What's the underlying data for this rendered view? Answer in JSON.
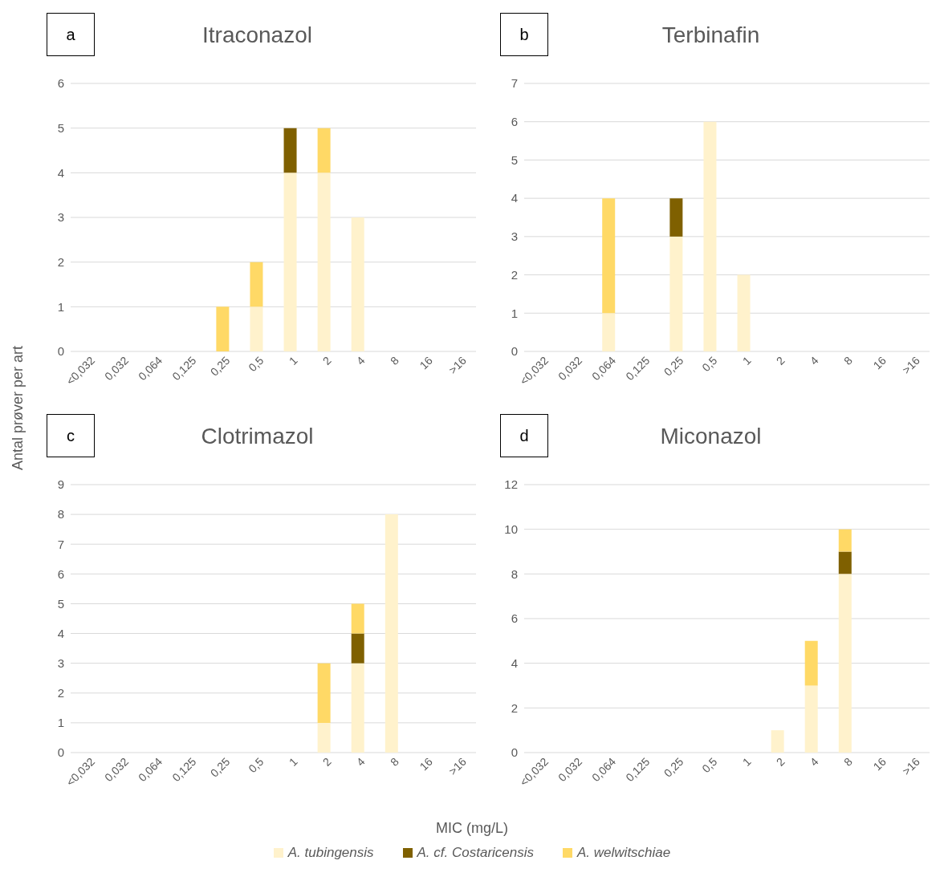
{
  "chart_data": [
    {
      "type": "bar",
      "title": "Itraconazol",
      "annotations": [
        "a"
      ],
      "ylabel": "Antal prøver per art",
      "xlabel": "MIC (mg/L)",
      "legend": "bottom",
      "stacked": true,
      "grid": "y",
      "categories": [
        "<0,032",
        "0,032",
        "0,064",
        "0,125",
        "0,25",
        "0,5",
        "1",
        "2",
        "4",
        "8",
        "16",
        ">16"
      ],
      "ylim": [
        0,
        6
      ],
      "yticks": [
        0,
        1,
        2,
        3,
        4,
        5,
        6
      ],
      "series": [
        {
          "name": "A. tubingensis",
          "color": "#fff2cc",
          "values": [
            0,
            0,
            0,
            0,
            0,
            1,
            4,
            4,
            3,
            0,
            0,
            0
          ]
        },
        {
          "name": "A. cf. Costaricensis",
          "color": "#7f6000",
          "values": [
            0,
            0,
            0,
            0,
            0,
            0,
            1,
            0,
            0,
            0,
            0,
            0
          ]
        },
        {
          "name": "A. welwitschiae",
          "color": "#ffd966",
          "values": [
            0,
            0,
            0,
            0,
            1,
            1,
            0,
            1,
            0,
            0,
            0,
            0
          ]
        }
      ]
    },
    {
      "type": "bar",
      "title": "Terbinafin",
      "annotations": [
        "b"
      ],
      "stacked": true,
      "grid": "y",
      "categories": [
        "<0,032",
        "0,032",
        "0,064",
        "0,125",
        "0,25",
        "0,5",
        "1",
        "2",
        "4",
        "8",
        "16",
        ">16"
      ],
      "ylim": [
        0,
        7
      ],
      "yticks": [
        0,
        1,
        2,
        3,
        4,
        5,
        6,
        7
      ],
      "series": [
        {
          "color": "#fff2cc",
          "values": [
            0,
            0,
            1,
            0,
            3,
            6,
            2,
            0,
            0,
            0,
            0,
            0
          ]
        },
        {
          "color": "#7f6000",
          "values": [
            0,
            0,
            0,
            0,
            1,
            0,
            0,
            0,
            0,
            0,
            0,
            0
          ]
        },
        {
          "color": "#ffd966",
          "values": [
            0,
            0,
            3,
            0,
            0,
            0,
            0,
            0,
            0,
            0,
            0,
            0
          ]
        }
      ]
    },
    {
      "type": "bar",
      "title": "Clotrimazol",
      "annotations": [
        "c"
      ],
      "stacked": true,
      "grid": "y",
      "categories": [
        "<0,032",
        "0,032",
        "0,064",
        "0,125",
        "0,25",
        "0,5",
        "1",
        "2",
        "4",
        "8",
        "16",
        ">16"
      ],
      "ylim": [
        0,
        9
      ],
      "yticks": [
        0,
        1,
        2,
        3,
        4,
        5,
        6,
        7,
        8,
        9
      ],
      "series": [
        {
          "color": "#fff2cc",
          "values": [
            0,
            0,
            0,
            0,
            0,
            0,
            0,
            1,
            3,
            8,
            0,
            0
          ]
        },
        {
          "color": "#7f6000",
          "values": [
            0,
            0,
            0,
            0,
            0,
            0,
            0,
            0,
            1,
            0,
            0,
            0
          ]
        },
        {
          "color": "#ffd966",
          "values": [
            0,
            0,
            0,
            0,
            0,
            0,
            0,
            2,
            1,
            0,
            0,
            0
          ]
        }
      ]
    },
    {
      "type": "bar",
      "title": "Miconazol",
      "annotations": [
        "d"
      ],
      "stacked": true,
      "grid": "y",
      "categories": [
        "<0,032",
        "0,032",
        "0,064",
        "0,125",
        "0,25",
        "0,5",
        "1",
        "2",
        "4",
        "8",
        "16",
        ">16"
      ],
      "ylim": [
        0,
        12
      ],
      "yticks": [
        0,
        2,
        4,
        6,
        8,
        10,
        12
      ],
      "series": [
        {
          "color": "#fff2cc",
          "values": [
            0,
            0,
            0,
            0,
            0,
            0,
            0,
            1,
            3,
            8,
            0,
            0
          ]
        },
        {
          "color": "#7f6000",
          "values": [
            0,
            0,
            0,
            0,
            0,
            0,
            0,
            0,
            0,
            1,
            0,
            0
          ]
        },
        {
          "color": "#ffd966",
          "values": [
            0,
            0,
            0,
            0,
            0,
            0,
            0,
            0,
            2,
            1,
            0,
            0
          ]
        }
      ]
    }
  ]
}
